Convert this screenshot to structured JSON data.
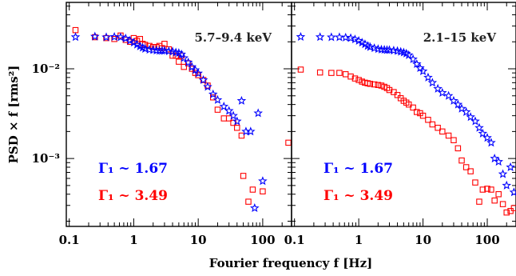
{
  "chart_data": [
    {
      "type": "scatter",
      "title": "5.7–9.4 keV",
      "x_scale": "log",
      "y_scale": "log",
      "xlim": [
        0.09,
        280
      ],
      "ylim": [
        0.000175,
        0.055
      ],
      "annotations": [
        "Γ₁ ~ 1.67",
        "Γ₁ ~ 3.49"
      ],
      "series": [
        {
          "marker": "star",
          "color": "#0000ff",
          "points": [
            [
              0.125,
              0.0226
            ],
            [
              0.25,
              0.0229
            ],
            [
              0.375,
              0.0225
            ],
            [
              0.5,
              0.0227
            ],
            [
              0.625,
              0.0225
            ],
            [
              0.75,
              0.0218
            ],
            [
              0.875,
              0.0206
            ],
            [
              1.0,
              0.0196
            ],
            [
              1.125,
              0.0186
            ],
            [
              1.25,
              0.0178
            ],
            [
              1.375,
              0.0172
            ],
            [
              1.5,
              0.0167
            ],
            [
              1.75,
              0.0163
            ],
            [
              2.0,
              0.0162
            ],
            [
              2.25,
              0.016
            ],
            [
              2.5,
              0.0159
            ],
            [
              2.75,
              0.0159
            ],
            [
              3.0,
              0.0159
            ],
            [
              3.5,
              0.0157
            ],
            [
              4.0,
              0.0156
            ],
            [
              4.5,
              0.0152
            ],
            [
              5.0,
              0.015
            ],
            [
              5.5,
              0.0145
            ],
            [
              6.0,
              0.0132
            ],
            [
              7.0,
              0.0118
            ],
            [
              8.0,
              0.0105
            ],
            [
              9.0,
              0.0097
            ],
            [
              10.0,
              0.0089
            ],
            [
              12.0,
              0.0075
            ],
            [
              14.0,
              0.0063
            ],
            [
              17.0,
              0.0052
            ],
            [
              20.0,
              0.0045
            ],
            [
              25.0,
              0.0038
            ],
            [
              30.0,
              0.0034
            ],
            [
              35.0,
              0.003
            ],
            [
              40.0,
              0.0026
            ],
            [
              47.0,
              0.0044
            ],
            [
              55.0,
              0.002
            ],
            [
              65.0,
              0.002
            ],
            [
              75.0,
              0.00028
            ],
            [
              85.0,
              0.0032
            ],
            [
              100.0,
              0.00056
            ]
          ]
        },
        {
          "marker": "square",
          "color": "#ff0000",
          "points": [
            [
              0.125,
              0.027
            ],
            [
              0.25,
              0.0225
            ],
            [
              0.375,
              0.022
            ],
            [
              0.5,
              0.0215
            ],
            [
              0.625,
              0.0235
            ],
            [
              0.75,
              0.021
            ],
            [
              0.875,
              0.02
            ],
            [
              1.0,
              0.022
            ],
            [
              1.125,
              0.0205
            ],
            [
              1.25,
              0.0215
            ],
            [
              1.375,
              0.019
            ],
            [
              1.5,
              0.0185
            ],
            [
              1.75,
              0.018
            ],
            [
              2.0,
              0.0175
            ],
            [
              2.25,
              0.0175
            ],
            [
              2.5,
              0.018
            ],
            [
              2.75,
              0.017
            ],
            [
              3.0,
              0.019
            ],
            [
              3.5,
              0.0165
            ],
            [
              4.0,
              0.014
            ],
            [
              4.5,
              0.014
            ],
            [
              5.0,
              0.012
            ],
            [
              5.5,
              0.014
            ],
            [
              6.0,
              0.0105
            ],
            [
              7.0,
              0.0115
            ],
            [
              8.0,
              0.01
            ],
            [
              9.0,
              0.009
            ],
            [
              10.0,
              0.0085
            ],
            [
              12.0,
              0.0075
            ],
            [
              14.0,
              0.0065
            ],
            [
              17.0,
              0.0048
            ],
            [
              20.0,
              0.0035
            ],
            [
              25.0,
              0.0028
            ],
            [
              30.0,
              0.0028
            ],
            [
              35.0,
              0.0025
            ],
            [
              40.0,
              0.0022
            ],
            [
              47.0,
              0.0018
            ],
            [
              50.0,
              0.00064
            ],
            [
              60.0,
              0.00033
            ],
            [
              70.0,
              0.00045
            ],
            [
              100.0,
              0.00043
            ],
            [
              250.0,
              0.0015
            ]
          ]
        }
      ]
    },
    {
      "type": "scatter",
      "title": "2.1–15 keV",
      "x_scale": "log",
      "y_scale": "log",
      "xlim": [
        0.09,
        280
      ],
      "ylim": [
        0.000175,
        0.055
      ],
      "annotations": [
        "Γ₁ ~ 1.67",
        "Γ₁ ~ 3.49"
      ],
      "series": [
        {
          "marker": "star",
          "color": "#0000ff",
          "points": [
            [
              0.125,
              0.0227
            ],
            [
              0.25,
              0.0226
            ],
            [
              0.375,
              0.0225
            ],
            [
              0.5,
              0.0225
            ],
            [
              0.625,
              0.0223
            ],
            [
              0.75,
              0.022
            ],
            [
              0.875,
              0.0213
            ],
            [
              1.0,
              0.0205
            ],
            [
              1.125,
              0.0196
            ],
            [
              1.25,
              0.0188
            ],
            [
              1.375,
              0.018
            ],
            [
              1.5,
              0.0175
            ],
            [
              1.75,
              0.017
            ],
            [
              2.0,
              0.0166
            ],
            [
              2.25,
              0.0164
            ],
            [
              2.5,
              0.0163
            ],
            [
              2.75,
              0.0162
            ],
            [
              3.0,
              0.0162
            ],
            [
              3.5,
              0.016
            ],
            [
              4.0,
              0.0158
            ],
            [
              4.5,
              0.0155
            ],
            [
              5.0,
              0.0152
            ],
            [
              5.5,
              0.0148
            ],
            [
              6.0,
              0.0142
            ],
            [
              7.0,
              0.0128
            ],
            [
              8.0,
              0.0113
            ],
            [
              9.0,
              0.0102
            ],
            [
              10.0,
              0.0094
            ],
            [
              12.0,
              0.008
            ],
            [
              14.0,
              0.007
            ],
            [
              17.0,
              0.006
            ],
            [
              20.0,
              0.0054
            ],
            [
              25.0,
              0.005
            ],
            [
              30.0,
              0.0044
            ],
            [
              35.0,
              0.004
            ],
            [
              40.0,
              0.0036
            ],
            [
              47.0,
              0.0033
            ],
            [
              55.0,
              0.0029
            ],
            [
              65.0,
              0.0026
            ],
            [
              75.0,
              0.0022
            ],
            [
              85.0,
              0.0019
            ],
            [
              100.0,
              0.0017
            ],
            [
              115.0,
              0.0015
            ],
            [
              130.0,
              0.001
            ],
            [
              150.0,
              0.00092
            ],
            [
              175.0,
              0.00067
            ],
            [
              200.0,
              0.0005
            ],
            [
              230.0,
              0.0008
            ],
            [
              260.0,
              0.00042
            ]
          ]
        },
        {
          "marker": "square",
          "color": "#ff0000",
          "points": [
            [
              0.125,
              0.0098
            ],
            [
              0.25,
              0.0091
            ],
            [
              0.375,
              0.009
            ],
            [
              0.5,
              0.009
            ],
            [
              0.625,
              0.0087
            ],
            [
              0.75,
              0.0082
            ],
            [
              0.875,
              0.0078
            ],
            [
              1.0,
              0.0075
            ],
            [
              1.125,
              0.0072
            ],
            [
              1.25,
              0.007
            ],
            [
              1.375,
              0.0069
            ],
            [
              1.5,
              0.0068
            ],
            [
              1.75,
              0.0067
            ],
            [
              2.0,
              0.0066
            ],
            [
              2.25,
              0.0065
            ],
            [
              2.5,
              0.0063
            ],
            [
              2.75,
              0.0061
            ],
            [
              3.0,
              0.0058
            ],
            [
              3.5,
              0.0055
            ],
            [
              4.0,
              0.0051
            ],
            [
              4.5,
              0.0047
            ],
            [
              5.0,
              0.0044
            ],
            [
              5.5,
              0.0042
            ],
            [
              6.0,
              0.004
            ],
            [
              7.0,
              0.0037
            ],
            [
              8.0,
              0.0033
            ],
            [
              9.0,
              0.0032
            ],
            [
              10.0,
              0.003
            ],
            [
              12.0,
              0.0027
            ],
            [
              14.0,
              0.0024
            ],
            [
              17.0,
              0.0022
            ],
            [
              20.0,
              0.002
            ],
            [
              25.0,
              0.0018
            ],
            [
              30.0,
              0.0016
            ],
            [
              35.0,
              0.0013
            ],
            [
              40.0,
              0.00095
            ],
            [
              47.0,
              0.0008
            ],
            [
              55.0,
              0.00072
            ],
            [
              65.0,
              0.00054
            ],
            [
              75.0,
              0.00033
            ],
            [
              85.0,
              0.00045
            ],
            [
              100.0,
              0.00046
            ],
            [
              115.0,
              0.00045
            ],
            [
              130.0,
              0.00034
            ],
            [
              150.0,
              0.0004
            ],
            [
              175.0,
              0.00031
            ],
            [
              200.0,
              0.00025
            ],
            [
              230.0,
              0.00026
            ],
            [
              260.0,
              0.00028
            ]
          ]
        }
      ]
    }
  ],
  "shared": {
    "ylabel": "PSD × f [rms²]",
    "xlabel": "Fourier frequency f [Hz]",
    "x_ticks": [
      "0.1",
      "1",
      "10",
      "100"
    ],
    "y_ticks": [
      "10⁻³",
      "10⁻²"
    ],
    "colors": {
      "star": "#0000ff",
      "square": "#ff0000",
      "axis": "#000000"
    }
  }
}
